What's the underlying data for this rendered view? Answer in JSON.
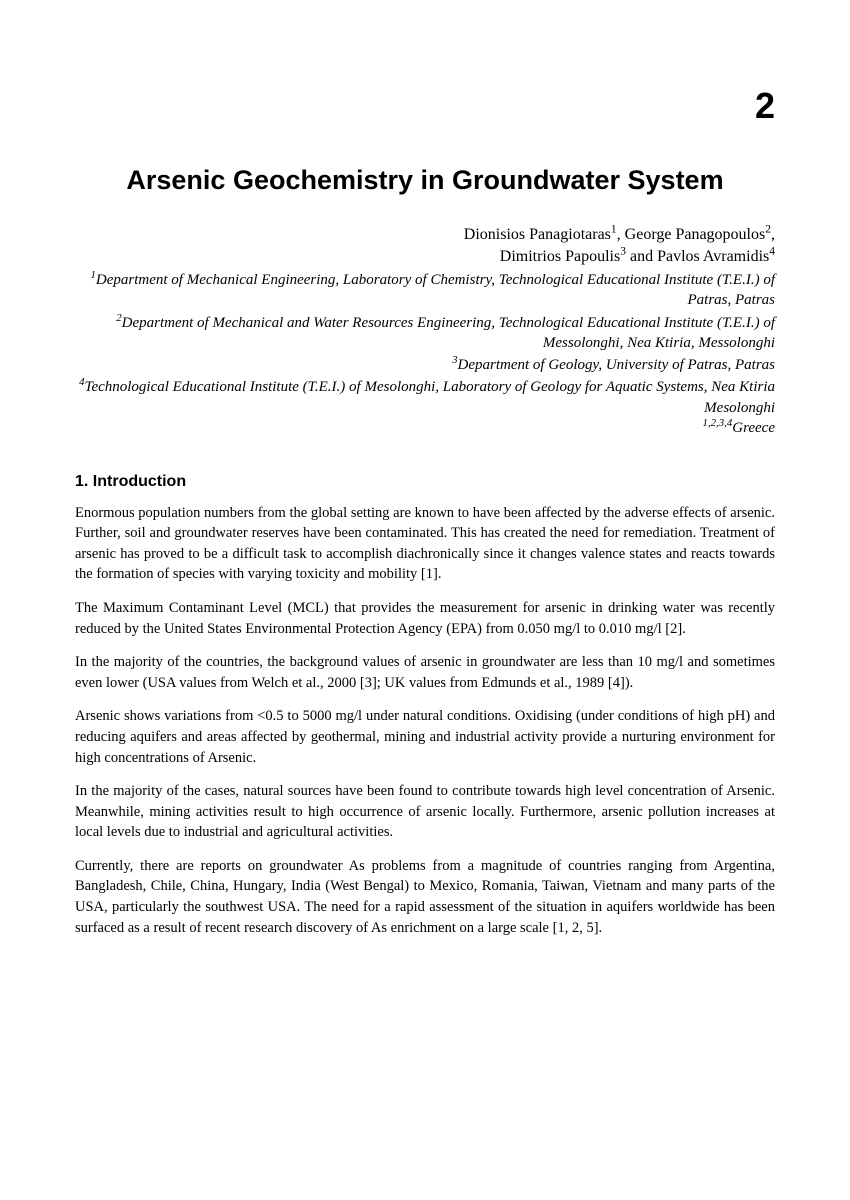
{
  "chapter_number": "2",
  "title": "Arsenic Geochemistry in Groundwater System",
  "authors_line1": "Dionisios Panagiotaras",
  "authors_sup1": "1",
  "authors_name2": ", George Panagopoulos",
  "authors_sup2": "2",
  "authors_comma2": ",",
  "authors_line2_name3": "Dimitrios Papoulis",
  "authors_sup3": "3",
  "authors_and": " and Pavlos Avramidis",
  "authors_sup4": "4",
  "aff1_sup": "1",
  "aff1": "Department of Mechanical Engineering, Laboratory of Chemistry, Technological Educational Institute (T.E.I.) of Patras, Patras",
  "aff2_sup": "2",
  "aff2": "Department of Mechanical and Water Resources Engineering, Technological Educational Institute (T.E.I.) of Messolonghi, Nea Ktiria, Messolonghi",
  "aff3_sup": "3",
  "aff3": "Department of Geology, University of Patras, Patras",
  "aff4_sup": "4",
  "aff4": "Technological Educational Institute (T.E.I.) of Mesolonghi, Laboratory of Geology for Aquatic Systems, Nea Ktiria Mesolonghi",
  "greece_sup": "1,2,3,4",
  "greece": "Greece",
  "section_heading": "1. Introduction",
  "p1": "Enormous population numbers from the global setting are known to have been affected by the adverse effects of arsenic. Further, soil and groundwater reserves have been contaminated. This has created the need for remediation. Treatment of arsenic has proved to be a difficult task to accomplish diachronically since it changes valence states and reacts towards the formation of species with varying toxicity and mobility [1].",
  "p2": "The Maximum Contaminant Level (MCL) that provides the measurement for arsenic in drinking water was recently reduced by the United States Environmental Protection Agency (EPA) from 0.050 mg/l to 0.010 mg/l [2].",
  "p3": "In the majority of the countries, the background values of arsenic in groundwater are less than 10 mg/l and sometimes even lower (USA values from Welch et al., 2000 [3]; UK values from Edmunds et al., 1989 [4]).",
  "p4": "Arsenic shows variations from <0.5 to 5000 mg/l under natural conditions. Oxidising (under conditions of high pH) and reducing aquifers and areas affected by geothermal, mining and industrial activity provide a nurturing environment for high concentrations of Arsenic.",
  "p5": "In the majority of the cases, natural sources have been found to contribute towards high level concentration of Arsenic. Meanwhile, mining activities result to high occurrence of arsenic locally. Furthermore, arsenic pollution increases at local levels due to industrial and agricultural activities.",
  "p6": "Currently, there are reports on groundwater As problems from a magnitude of countries ranging from Argentina, Bangladesh, Chile, China, Hungary, India (West Bengal) to Mexico, Romania, Taiwan, Vietnam and many parts of the USA, particularly the southwest USA. The need for a rapid assessment of the situation in aquifers worldwide has been surfaced as a result of recent research discovery of As enrichment on a large scale [1, 2, 5]."
}
